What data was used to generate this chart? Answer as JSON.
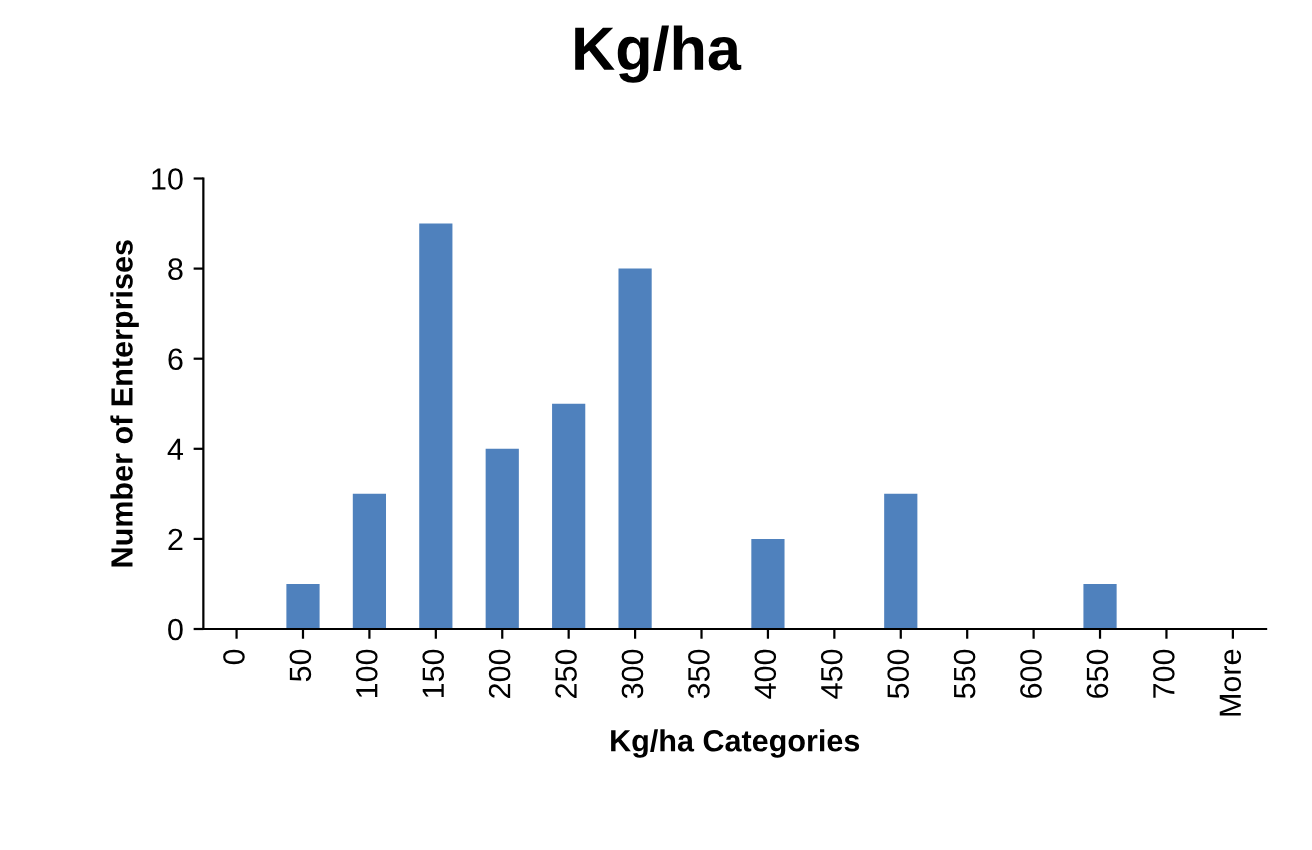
{
  "chart_data": {
    "type": "bar",
    "title": "Kg/ha",
    "xlabel": "Kg/ha Categories",
    "ylabel": "Number of Enterprises",
    "categories": [
      "0",
      "50",
      "100",
      "150",
      "200",
      "250",
      "300",
      "350",
      "400",
      "450",
      "500",
      "550",
      "600",
      "650",
      "700",
      "More"
    ],
    "values": [
      0,
      1,
      3,
      9,
      4,
      5,
      8,
      0,
      2,
      0,
      3,
      0,
      0,
      1,
      0,
      0
    ],
    "color": "#4f81bd",
    "ylim": [
      0,
      10
    ],
    "yticks": [
      0,
      2,
      4,
      6,
      8,
      10
    ],
    "grid": false,
    "legend": false
  }
}
